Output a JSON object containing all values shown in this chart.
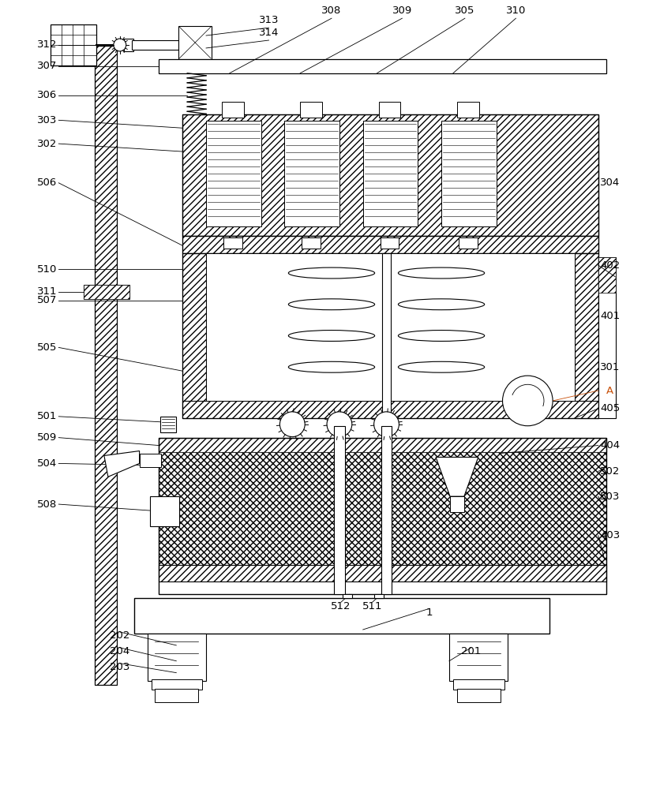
{
  "bg_color": "#ffffff",
  "line_color": "#000000",
  "label_color": "#000000",
  "highlight_color": "#c8500a",
  "figsize": [
    8.36,
    10.0
  ],
  "dpi": 100
}
